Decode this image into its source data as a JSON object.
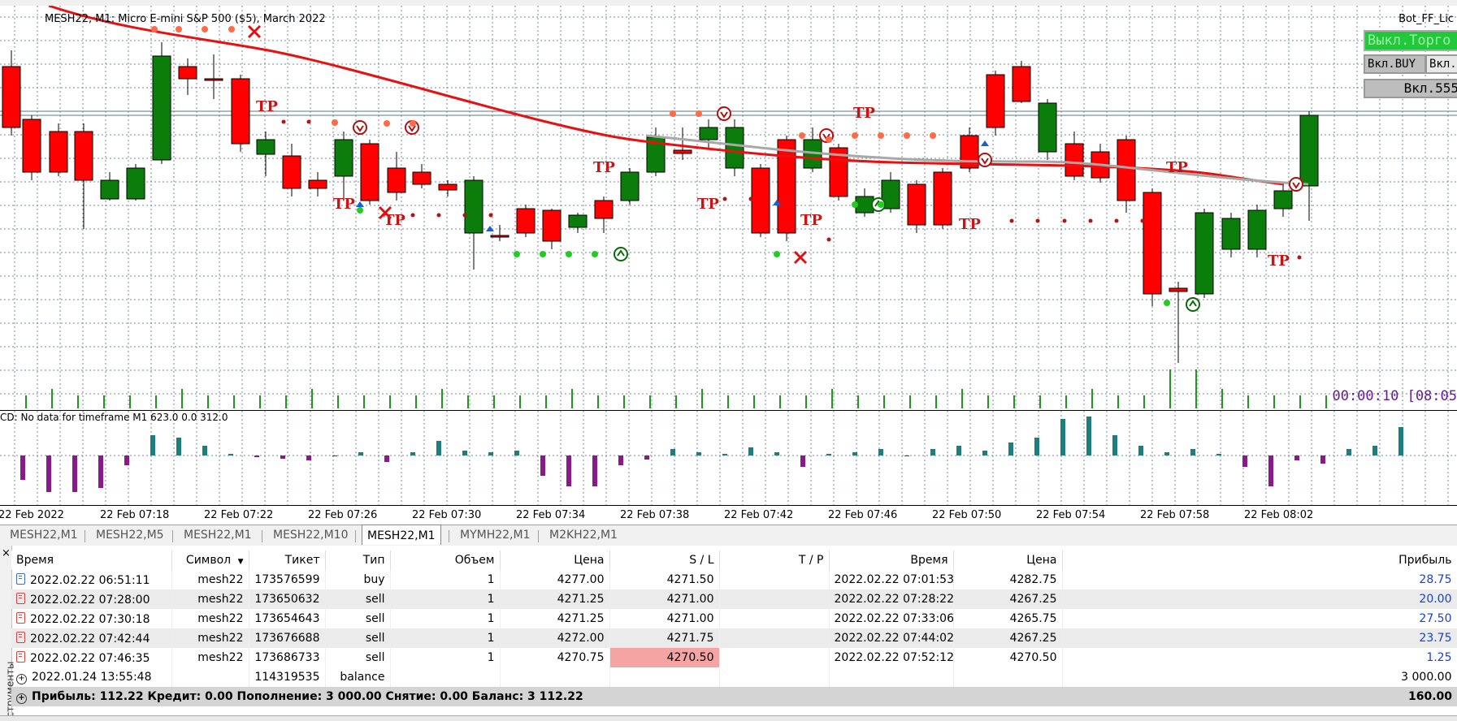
{
  "chart": {
    "title": "MESH22, M1:  Micro E-mini S&P 500 ($5), March 2022",
    "ea_name": "Bot_FF_Lic",
    "timer": "00:00:10 [08:05",
    "indicator_label": "CD: No data for timeframe M1 623.0 0.0 312.0",
    "buttons": {
      "trade_off": "Выкл.Торго",
      "buy_on": "Вкл.BUY",
      "sell_on": "Вкл.",
      "on555": "Вкл.555"
    },
    "tp_label": "TP",
    "x_labels": [
      "22 Feb 2022",
      "22 Feb 07:18",
      "22 Feb 07:22",
      "22 Feb 07:26",
      "22 Feb 07:30",
      "22 Feb 07:34",
      "22 Feb 07:38",
      "22 Feb 07:42",
      "22 Feb 07:46",
      "22 Feb 07:50",
      "22 Feb 07:54",
      "22 Feb 07:58",
      "22 Feb 08:02"
    ],
    "colors": {
      "bull": "#0a7d0a",
      "bear": "#ff0000",
      "grid": "#778899",
      "ma_red": "#e81010",
      "ma_gray": "#a8a8a8",
      "hist_teal": "#1b7f7f",
      "hist_purple": "#8a1a8a"
    }
  },
  "chart_tabs": [
    "MESH22,M1",
    "MESH22,M5",
    "MESH22,M1",
    "MESH22,M10",
    "MESH22,M1",
    "MYMH22,M1",
    "M2KH22,M1"
  ],
  "active_tab": 4,
  "terminal": {
    "side_label": "струменты",
    "close_glyph": "×",
    "headers": [
      "Время",
      "Символ",
      "Тикет",
      "Тип",
      "Объем",
      "Цена",
      "S / L",
      "T / P",
      "Время",
      "Цена",
      "Прибыль"
    ],
    "rows": [
      {
        "open_time": "2022.02.22 06:51:11",
        "symbol": "mesh22",
        "ticket": "173576599",
        "type": "buy",
        "volume": "1",
        "price": "4277.00",
        "sl": "4271.50",
        "tp": "",
        "close_time": "2022.02.22 07:01:53",
        "close_price": "4282.75",
        "profit": "28.75"
      },
      {
        "open_time": "2022.02.22 07:28:00",
        "symbol": "mesh22",
        "ticket": "173650632",
        "type": "sell",
        "volume": "1",
        "price": "4271.25",
        "sl": "4271.00",
        "tp": "",
        "close_time": "2022.02.22 07:28:22",
        "close_price": "4267.25",
        "profit": "20.00"
      },
      {
        "open_time": "2022.02.22 07:30:18",
        "symbol": "mesh22",
        "ticket": "173654643",
        "type": "sell",
        "volume": "1",
        "price": "4271.25",
        "sl": "4271.00",
        "tp": "",
        "close_time": "2022.02.22 07:33:06",
        "close_price": "4265.75",
        "profit": "27.50"
      },
      {
        "open_time": "2022.02.22 07:42:44",
        "symbol": "mesh22",
        "ticket": "173676688",
        "type": "sell",
        "volume": "1",
        "price": "4272.00",
        "sl": "4271.75",
        "tp": "",
        "close_time": "2022.02.22 07:44:02",
        "close_price": "4267.25",
        "profit": "23.75"
      },
      {
        "open_time": "2022.02.22 07:46:35",
        "symbol": "mesh22",
        "ticket": "173686733",
        "type": "sell",
        "volume": "1",
        "price": "4270.75",
        "sl": "4270.50",
        "tp": "",
        "close_time": "2022.02.22 07:52:12",
        "close_price": "4270.50",
        "profit": "1.25"
      }
    ],
    "balance_row": {
      "time": "2022.01.24 13:55:48",
      "ticket": "114319535",
      "type": "balance",
      "amount": "3 000.00"
    },
    "total_row": {
      "summary": "Прибыль: 112.22  Кредит: 0.00  Пополнение: 3 000.00  Снятие: 0.00  Баланс: 3 112.22",
      "total": "160.00"
    }
  }
}
